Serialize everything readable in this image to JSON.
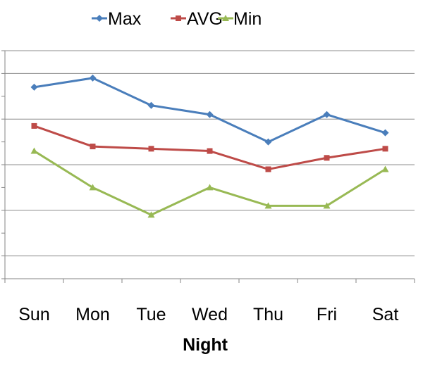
{
  "chart_data": {
    "type": "line",
    "title": "",
    "xlabel": "Night",
    "ylabel": "",
    "categories": [
      "Sun",
      "Mon",
      "Tue",
      "Wed",
      "Thu",
      "Fri",
      "Sat"
    ],
    "ylim": [
      0,
      10
    ],
    "y_tick_step": 1,
    "y_tick_labels_visible": false,
    "grid": "horizontal",
    "legend": "top",
    "series": [
      {
        "name": "Max",
        "color": "#4A7EBB",
        "marker": "diamond",
        "values": [
          8.4,
          8.8,
          7.6,
          7.2,
          6.0,
          7.2,
          6.4
        ]
      },
      {
        "name": "AVG",
        "color": "#BE4B48",
        "marker": "square",
        "values": [
          6.7,
          5.8,
          5.7,
          5.6,
          4.8,
          5.3,
          5.7
        ]
      },
      {
        "name": "Min",
        "color": "#98B954",
        "marker": "triangle",
        "values": [
          5.6,
          4.0,
          2.8,
          4.0,
          3.2,
          3.2,
          4.8
        ]
      }
    ]
  }
}
